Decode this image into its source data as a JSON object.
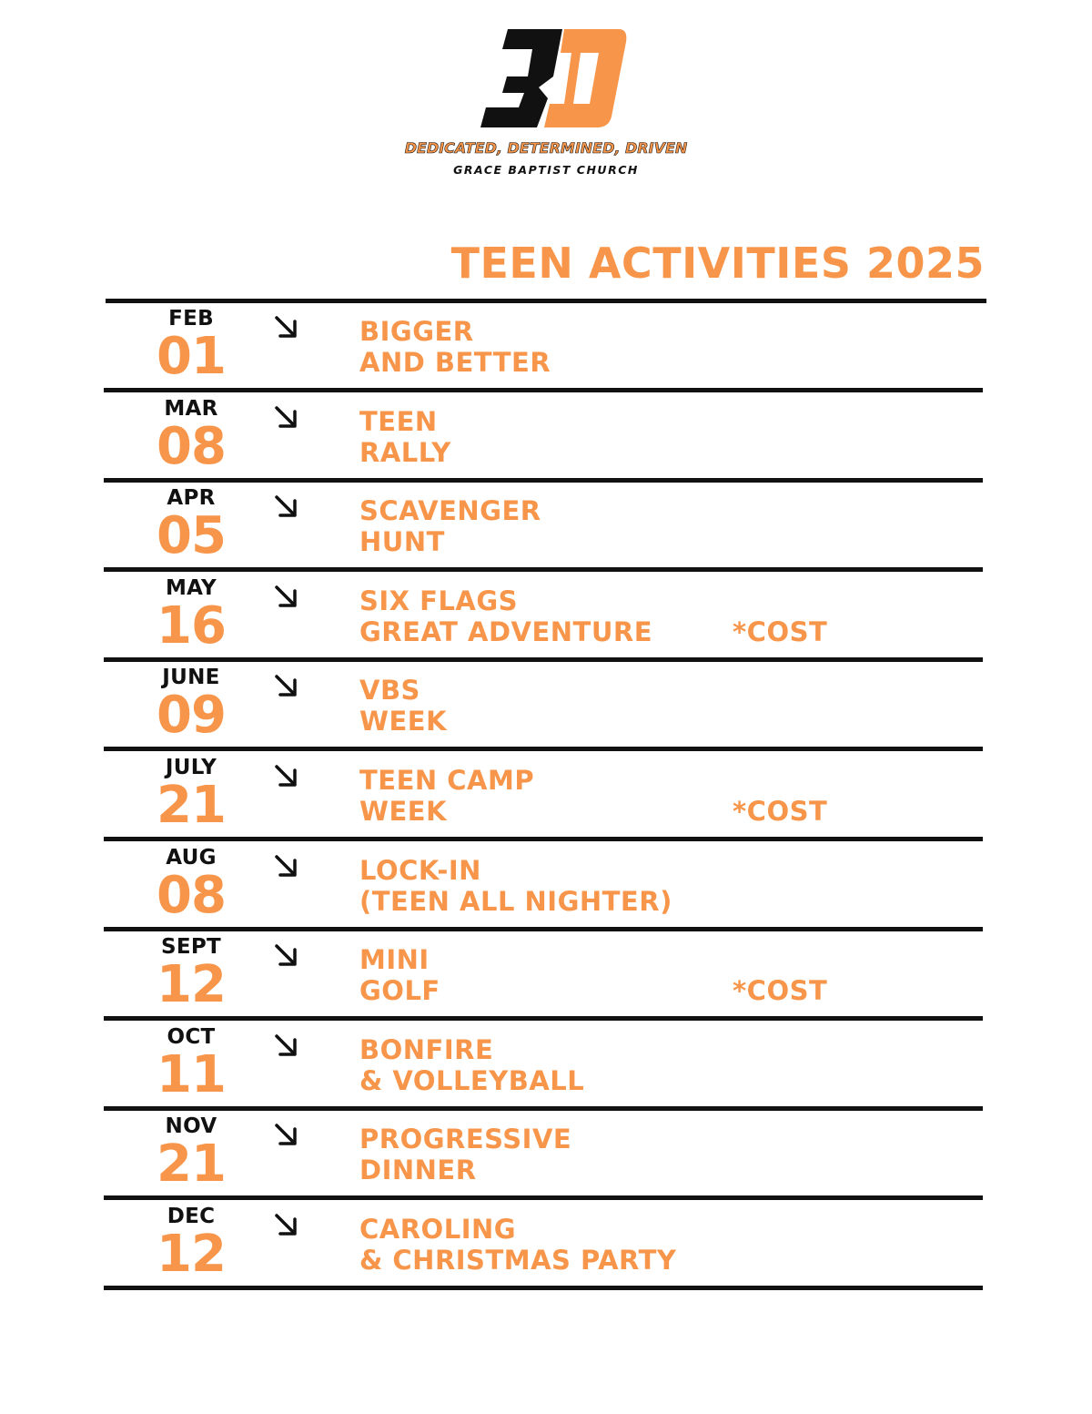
{
  "logo": {
    "mark": "3D",
    "tagline": "DEDICATED, DETERMINED, DRIVEN",
    "church": "GRACE BAPTIST CHURCH",
    "colors": {
      "black": "#111111",
      "orange": "#f7964a"
    }
  },
  "title": "TEEN ACTIVITIES 2025",
  "accent_color": "#f7964a",
  "arrow_icon": "arrow-down-right-icon",
  "events": [
    {
      "month": "FEB",
      "day": "01",
      "line1": "BIGGER",
      "line2": "AND BETTER",
      "cost": ""
    },
    {
      "month": "MAR",
      "day": "08",
      "line1": "TEEN",
      "line2": "RALLY",
      "cost": ""
    },
    {
      "month": "APR",
      "day": "05",
      "line1": "SCAVENGER",
      "line2": "HUNT",
      "cost": ""
    },
    {
      "month": "MAY",
      "day": "16",
      "line1": "SIX FLAGS",
      "line2": "GREAT ADVENTURE",
      "cost": "*COST"
    },
    {
      "month": "JUNE",
      "day": "09",
      "line1": "VBS",
      "line2": "WEEK",
      "cost": ""
    },
    {
      "month": "JULY",
      "day": "21",
      "line1": "TEEN CAMP",
      "line2": "WEEK",
      "cost": "*COST"
    },
    {
      "month": "AUG",
      "day": "08",
      "line1": "LOCK-IN",
      "line2": "(TEEN ALL NIGHTER)",
      "cost": ""
    },
    {
      "month": "SEPT",
      "day": "12",
      "line1": "MINI",
      "line2": "GOLF",
      "cost": "*COST"
    },
    {
      "month": "OCT",
      "day": "11",
      "line1": "BONFIRE",
      "line2": "& VOLLEYBALL",
      "cost": ""
    },
    {
      "month": "NOV",
      "day": "21",
      "line1": "PROGRESSIVE",
      "line2": "DINNER",
      "cost": ""
    },
    {
      "month": "DEC",
      "day": "12",
      "line1": "CAROLING",
      "line2": "& CHRISTMAS PARTY",
      "cost": ""
    }
  ]
}
